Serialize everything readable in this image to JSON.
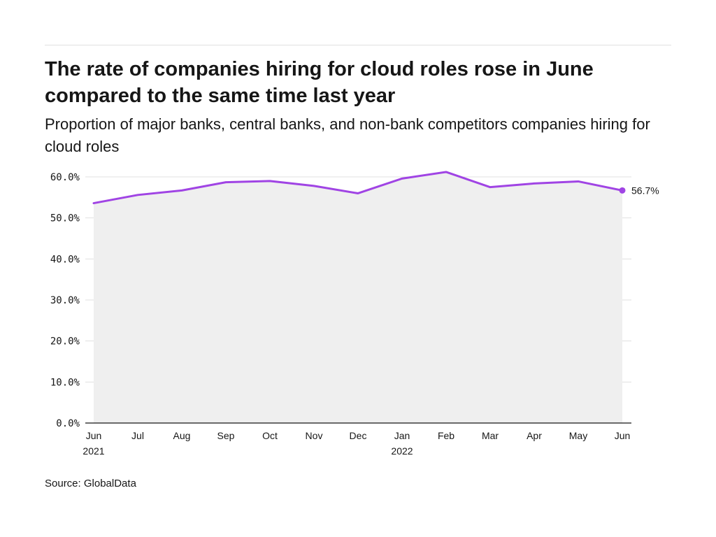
{
  "title": "The rate of companies hiring for cloud roles rose in June compared to the same time last year",
  "subtitle": "Proportion of major banks, central banks, and non-bank competitors companies hiring for cloud roles",
  "source": "Source: GlobalData",
  "colors": {
    "line": "#a044e4",
    "area": "#efefef",
    "grid": "#e0e0e0",
    "axis": "#161616"
  },
  "chart_data": {
    "type": "area",
    "title": "The rate of companies hiring for cloud roles rose in June compared to the same time last year",
    "subtitle": "Proportion of major banks, central banks, and non-bank competitors companies hiring for cloud roles",
    "xlabel": "",
    "ylabel": "",
    "ylim": [
      0,
      60
    ],
    "y_ticks": [
      "0.0%",
      "10.0%",
      "20.0%",
      "30.0%",
      "40.0%",
      "50.0%",
      "60.0%"
    ],
    "y_tick_values": [
      0,
      10,
      20,
      30,
      40,
      50,
      60
    ],
    "categories": [
      "Jun 2021",
      "Jul",
      "Aug",
      "Sep",
      "Oct",
      "Nov",
      "Dec",
      "Jan 2022",
      "Feb",
      "Mar",
      "Apr",
      "May",
      "Jun"
    ],
    "x_tick_labels": [
      [
        "Jun",
        "2021"
      ],
      [
        "Jul"
      ],
      [
        "Aug"
      ],
      [
        "Sep"
      ],
      [
        "Oct"
      ],
      [
        "Nov"
      ],
      [
        "Dec"
      ],
      [
        "Jan",
        "2022"
      ],
      [
        "Feb"
      ],
      [
        "Mar"
      ],
      [
        "Apr"
      ],
      [
        "May"
      ],
      [
        "Jun"
      ]
    ],
    "series": [
      {
        "values": [
          53.6,
          55.6,
          56.7,
          58.7,
          59.0,
          57.8,
          56.0,
          59.6,
          61.2,
          57.5,
          58.4,
          58.9,
          56.7
        ]
      }
    ],
    "end_label": "56.7%",
    "grid": true,
    "legend": "none"
  }
}
